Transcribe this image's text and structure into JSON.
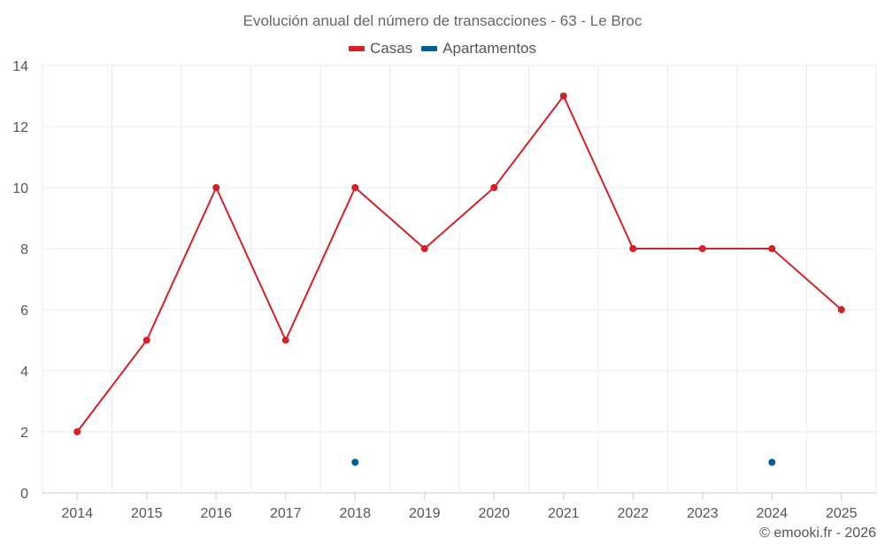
{
  "title": "Evolución anual del número de transacciones - 63 - Le Broc",
  "credit": "© emooki.fr - 2026",
  "colors": {
    "Casas": "#d32127",
    "Apartamentos": "#00609c",
    "grid": "#ebebeb",
    "axis": "#cccccc"
  },
  "chart_data": {
    "type": "line",
    "title": "Evolución anual del número de transacciones - 63 - Le Broc",
    "categories": [
      "2014",
      "2015",
      "2016",
      "2017",
      "2018",
      "2019",
      "2020",
      "2021",
      "2022",
      "2023",
      "2024",
      "2025"
    ],
    "ylim": [
      0,
      14
    ],
    "yticks": [
      0,
      2,
      4,
      6,
      8,
      10,
      12,
      14
    ],
    "grid": true,
    "legend_position": "top-center",
    "series": [
      {
        "name": "Casas",
        "values": [
          2,
          5,
          10,
          5,
          10,
          8,
          10,
          13,
          8,
          8,
          8,
          6
        ]
      },
      {
        "name": "Apartamentos",
        "values": [
          null,
          null,
          null,
          null,
          1,
          null,
          null,
          null,
          null,
          null,
          1,
          null
        ]
      }
    ]
  }
}
